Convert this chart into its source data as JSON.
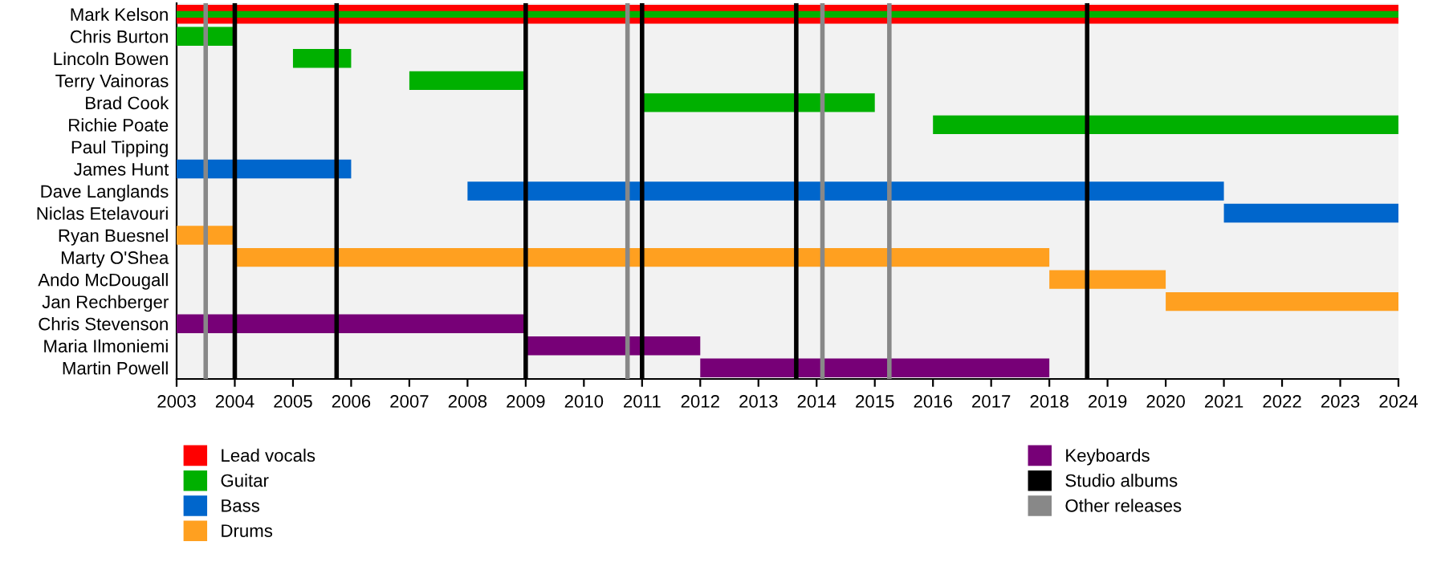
{
  "chart_data": {
    "type": "bar",
    "orientation": "horizontal",
    "categories": [
      "Mark Kelson",
      "Chris Burton",
      "Lincoln Bowen",
      "Terry Vainoras",
      "Brad Cook",
      "Richie Poate",
      "Paul Tipping",
      "James Hunt",
      "Dave Langlands",
      "Niclas Etelavouri",
      "Ryan Buesnel",
      "Marty O'Shea",
      "Ando McDougall",
      "Jan Rechberger",
      "Chris Stevenson",
      "Maria Ilmoniemi",
      "Martin Powell"
    ],
    "series": [
      {
        "name": "Lead vocals",
        "color": "#ff0000",
        "base": [
          2003,
          null,
          null,
          null,
          null,
          null,
          null,
          null,
          null,
          null,
          null,
          null,
          null,
          null,
          null,
          null,
          null
        ],
        "values": [
          21,
          null,
          null,
          null,
          null,
          null,
          null,
          null,
          null,
          null,
          null,
          null,
          null,
          null,
          null,
          null,
          null
        ]
      },
      {
        "name": "Guitar",
        "color": "#00b000",
        "base": [
          2003,
          2003,
          2005,
          2007,
          2011,
          2016,
          null,
          null,
          null,
          null,
          null,
          null,
          null,
          null,
          null,
          null,
          null
        ],
        "values": [
          21,
          1,
          1,
          2,
          4,
          8,
          null,
          null,
          null,
          null,
          null,
          null,
          null,
          null,
          null,
          null,
          null
        ]
      },
      {
        "name": "Bass",
        "color": "#0066cc",
        "base": [
          null,
          null,
          null,
          null,
          null,
          null,
          null,
          2003,
          2008,
          2021,
          null,
          null,
          null,
          null,
          null,
          null,
          null
        ],
        "values": [
          null,
          null,
          null,
          null,
          null,
          null,
          null,
          3,
          13,
          3,
          null,
          null,
          null,
          null,
          null,
          null,
          null
        ]
      },
      {
        "name": "Drums",
        "color": "#ffa020",
        "base": [
          null,
          null,
          null,
          null,
          null,
          null,
          null,
          null,
          null,
          null,
          2003,
          2004,
          2018,
          2020,
          null,
          null,
          null
        ],
        "values": [
          null,
          null,
          null,
          null,
          null,
          null,
          null,
          null,
          null,
          null,
          1,
          14,
          2,
          4,
          null,
          null,
          null
        ]
      },
      {
        "name": "Keyboards",
        "color": "#770077",
        "base": [
          null,
          null,
          null,
          null,
          null,
          null,
          null,
          null,
          null,
          null,
          null,
          null,
          null,
          null,
          2003,
          2009,
          2012
        ],
        "values": [
          null,
          null,
          null,
          null,
          null,
          null,
          null,
          null,
          null,
          null,
          null,
          null,
          null,
          null,
          6,
          3,
          6
        ]
      }
    ],
    "ref_lines": [
      {
        "axis": "x",
        "value": 2004.0,
        "label": "Studio albums",
        "color": "#000000"
      },
      {
        "axis": "x",
        "value": 2005.75,
        "color": "#000000"
      },
      {
        "axis": "x",
        "value": 2009.0,
        "color": "#000000"
      },
      {
        "axis": "x",
        "value": 2011.0,
        "color": "#000000"
      },
      {
        "axis": "x",
        "value": 2013.65,
        "color": "#000000"
      },
      {
        "axis": "x",
        "value": 2018.65,
        "color": "#000000"
      },
      {
        "axis": "x",
        "value": 2003.5,
        "label": "Other releases",
        "color": "#888888"
      },
      {
        "axis": "x",
        "value": 2010.75,
        "color": "#888888"
      },
      {
        "axis": "x",
        "value": 2014.1,
        "color": "#888888"
      },
      {
        "axis": "x",
        "value": 2015.25,
        "color": "#888888"
      }
    ],
    "xlim": [
      2003,
      2024
    ],
    "xticks": [
      2003,
      2004,
      2005,
      2006,
      2007,
      2008,
      2009,
      2010,
      2011,
      2012,
      2013,
      2014,
      2015,
      2016,
      2017,
      2018,
      2019,
      2020,
      2021,
      2022,
      2023,
      2024
    ],
    "grid": false,
    "legend": "bottom"
  }
}
